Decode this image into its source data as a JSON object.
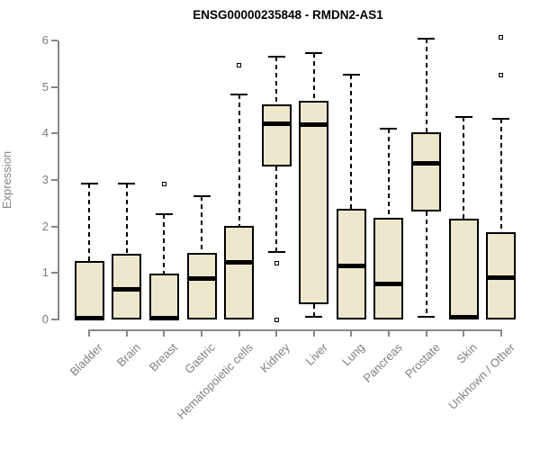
{
  "chart_data": {
    "type": "boxplot",
    "title": "ENSG00000235848 - RMDN2-AS1",
    "ylabel": "Expression",
    "xlabel": "",
    "ylim": [
      0,
      6
    ],
    "yticks": [
      0,
      1,
      2,
      3,
      4,
      5,
      6
    ],
    "grid": false,
    "legend": "none",
    "box_fill_color": "#EDE8CD",
    "box_stroke_color": "#000000",
    "axis_color": "#888888",
    "tick_label_color": "#808080",
    "categories": [
      "Bladder",
      "Brain",
      "Breast",
      "Gastric",
      "Hematopoietic cells",
      "Kidney",
      "Liver",
      "Lung",
      "Pancreas",
      "Prostate",
      "Skin",
      "Unknown / Other"
    ],
    "series": [
      {
        "name": "Bladder",
        "low": 0,
        "q1": 0,
        "median": 0.03,
        "q3": 1.26,
        "high": 2.93,
        "outliers": []
      },
      {
        "name": "Brain",
        "low": 0,
        "q1": 0,
        "median": 0.65,
        "q3": 1.42,
        "high": 2.93,
        "outliers": []
      },
      {
        "name": "Breast",
        "low": 0,
        "q1": 0,
        "median": 0.03,
        "q3": 0.98,
        "high": 2.27,
        "outliers": [
          2.92
        ]
      },
      {
        "name": "Gastric",
        "low": 0,
        "q1": 0,
        "median": 0.88,
        "q3": 1.44,
        "high": 2.65,
        "outliers": []
      },
      {
        "name": "Hematopoietic cells",
        "low": 0,
        "q1": 0,
        "median": 1.22,
        "q3": 2.01,
        "high": 4.84,
        "outliers": [
          5.46
        ]
      },
      {
        "name": "Kidney",
        "low": 1.46,
        "q1": 3.29,
        "median": 4.21,
        "q3": 4.62,
        "high": 5.65,
        "outliers": [
          1.21,
          0
        ]
      },
      {
        "name": "Liver",
        "low": 0.05,
        "q1": 0.32,
        "median": 4.19,
        "q3": 4.7,
        "high": 5.73,
        "outliers": []
      },
      {
        "name": "Lung",
        "low": 0,
        "q1": 0,
        "median": 1.16,
        "q3": 2.39,
        "high": 5.27,
        "outliers": []
      },
      {
        "name": "Pancreas",
        "low": 0,
        "q1": 0,
        "median": 0.77,
        "q3": 2.19,
        "high": 4.11,
        "outliers": []
      },
      {
        "name": "Prostate",
        "low": 0.05,
        "q1": 2.32,
        "median": 3.35,
        "q3": 4.02,
        "high": 6.04,
        "outliers": []
      },
      {
        "name": "Skin",
        "low": 0,
        "q1": 0,
        "median": 0.04,
        "q3": 2.17,
        "high": 4.35,
        "outliers": []
      },
      {
        "name": "Unknown / Other",
        "low": 0,
        "q1": 0,
        "median": 0.9,
        "q3": 1.87,
        "high": 4.32,
        "outliers": [
          5.26,
          6.06
        ]
      }
    ]
  }
}
